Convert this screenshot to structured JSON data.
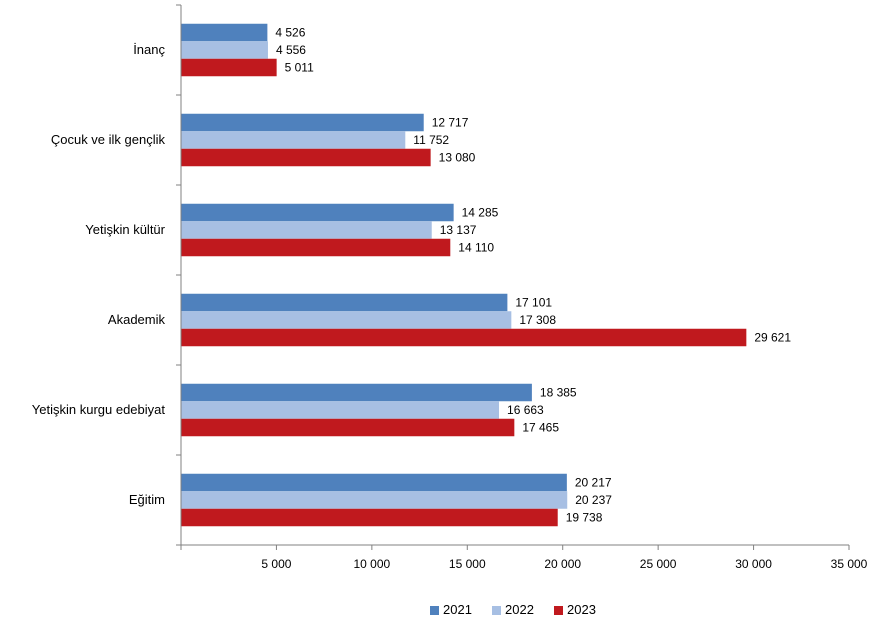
{
  "chart_data": {
    "type": "bar",
    "orientation": "horizontal",
    "title": "",
    "xlabel": "",
    "ylabel": "",
    "categories": [
      "İnanç",
      "Çocuk ve ilk gençlik",
      "Yetişkin kültür",
      "Akademik",
      "Yetişkin kurgu edebiyat",
      "Eğitim"
    ],
    "series": [
      {
        "name": "2021",
        "color": "#4f81bd",
        "values": [
          4526,
          12717,
          14285,
          17101,
          18385,
          20217
        ],
        "labels": [
          "4 526",
          "12 717",
          "14 285",
          "17 101",
          "18 385",
          "20 217"
        ]
      },
      {
        "name": "2022",
        "color": "#a7bfe3",
        "values": [
          4556,
          11752,
          13137,
          17308,
          16663,
          20237
        ],
        "labels": [
          "4 556",
          "11 752",
          "13 137",
          "17 308",
          "16 663",
          "20 237"
        ]
      },
      {
        "name": "2023",
        "color": "#c0191e",
        "values": [
          5011,
          13080,
          14110,
          29621,
          17465,
          19738
        ],
        "labels": [
          "5 011",
          "13 080",
          "14 110",
          "29 621",
          "17 465",
          "19 738"
        ]
      }
    ],
    "xlim": [
      0,
      35000
    ],
    "xticks": [
      5000,
      10000,
      15000,
      20000,
      25000,
      30000,
      35000
    ],
    "xtick_labels": [
      "5 000",
      "10 000",
      "15 000",
      "20 000",
      "25 000",
      "30 000",
      "35 000"
    ],
    "grid": false,
    "legend_position": "bottom"
  }
}
